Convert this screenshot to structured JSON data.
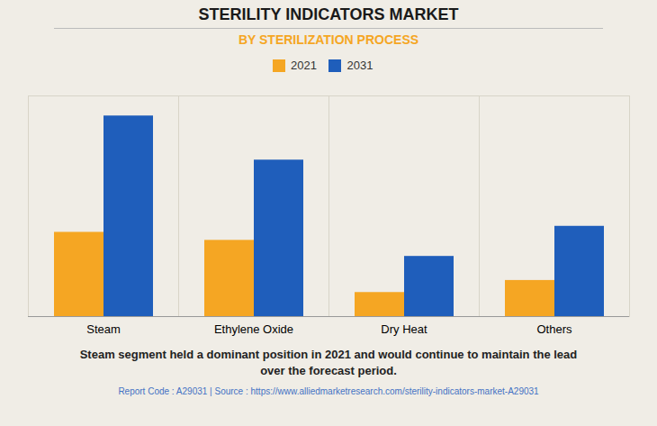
{
  "chart_data": {
    "type": "bar",
    "title": "STERILITY INDICATORS MARKET",
    "subtitle": "BY STERILIZATION PROCESS",
    "categories": [
      "Steam",
      "Ethylene Oxide",
      "Dry Heat",
      "Others"
    ],
    "series": [
      {
        "name": "2021",
        "color": "#F5A623",
        "values": [
          42,
          38,
          12,
          18
        ]
      },
      {
        "name": "2031",
        "color": "#1F5EBB",
        "values": [
          100,
          78,
          30,
          45
        ]
      }
    ],
    "ylim": [
      0,
      110
    ],
    "grid": false,
    "legend": "top",
    "tick_labels": "x",
    "annotations": [
      "Steam segment held a dominant position in 2021 and would continue to maintain the lead\nover the forecast period.",
      "Report Code : A29031  |  Source : https://www.alliedmarketresearch.com/sterility-indicators-market-A29031"
    ]
  }
}
